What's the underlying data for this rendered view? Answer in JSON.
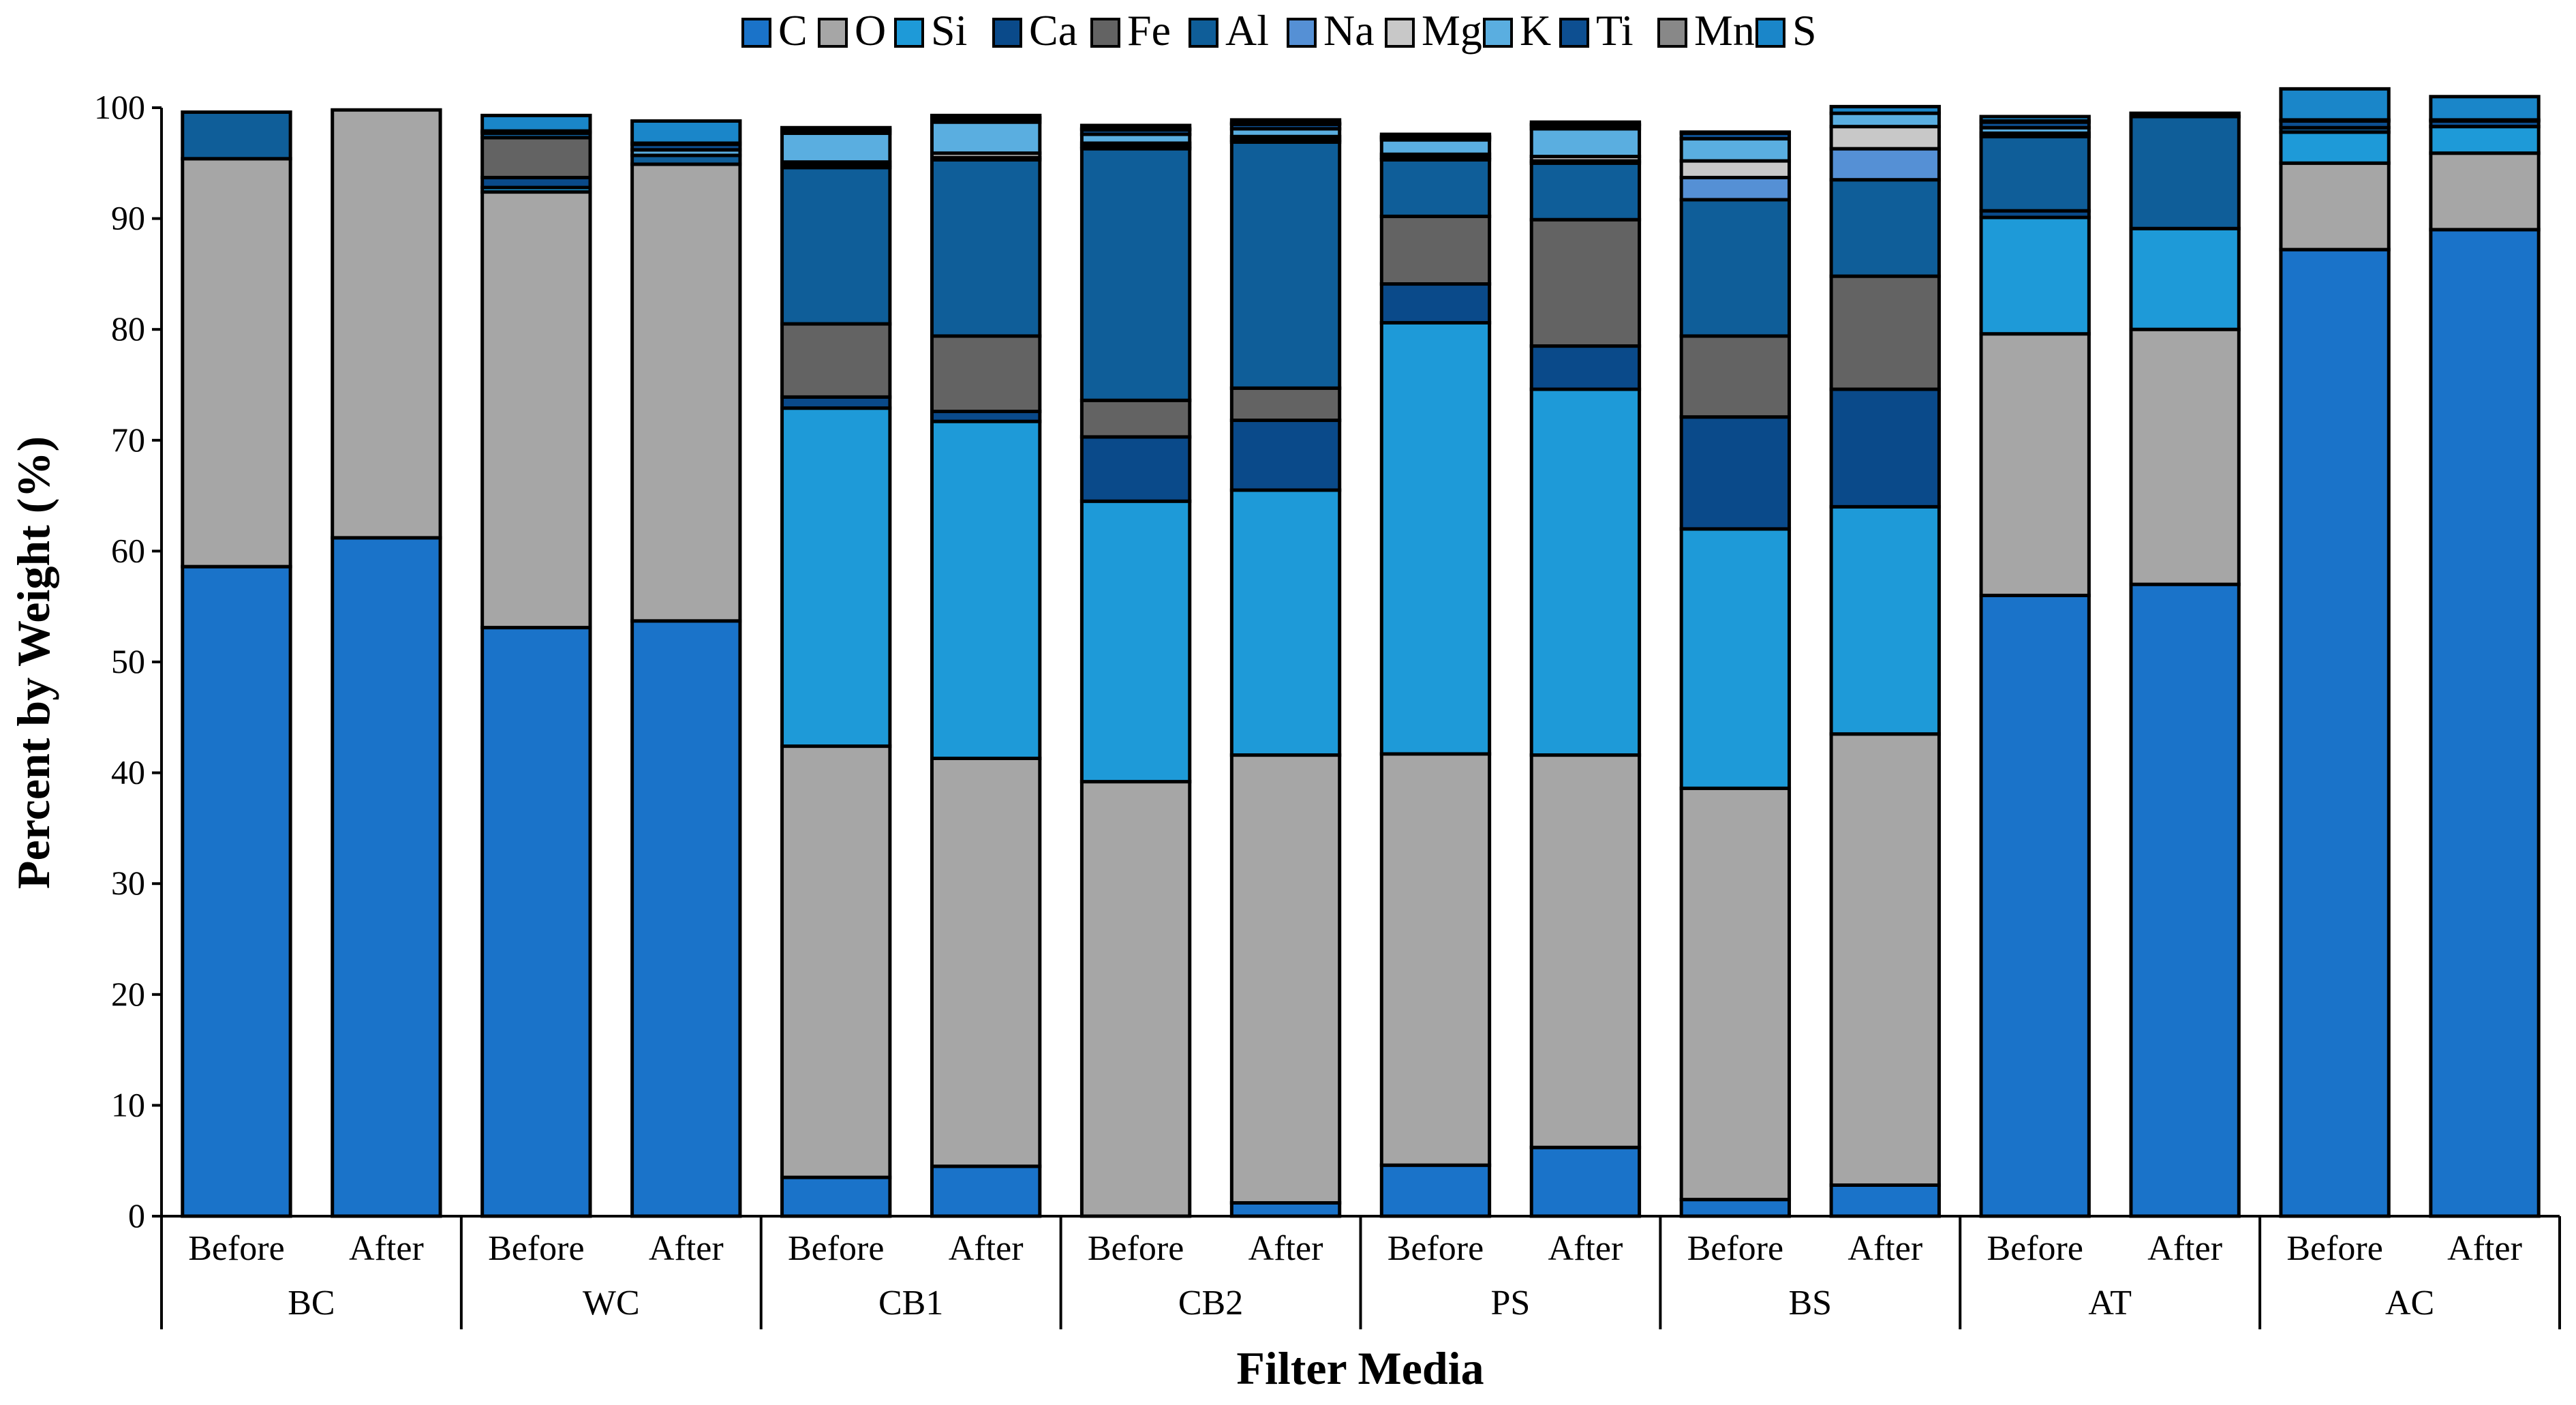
{
  "chart_data": {
    "type": "bar",
    "stacked": true,
    "title": "",
    "xlabel": "Filter Media",
    "ylabel": "Percent by Weight (%)",
    "ylim": [
      0,
      100
    ],
    "yticks": [
      0,
      10,
      20,
      30,
      40,
      50,
      60,
      70,
      80,
      90,
      100
    ],
    "legend_position": "top",
    "groups": [
      "BC",
      "WC",
      "CB1",
      "CB2",
      "PS",
      "BS",
      "AT",
      "AC"
    ],
    "subcategories": [
      "Before",
      "After"
    ],
    "categories": [
      "BC Before",
      "BC After",
      "WC Before",
      "WC After",
      "CB1 Before",
      "CB1 After",
      "CB2 Before",
      "CB2 After",
      "PS Before",
      "PS After",
      "BS Before",
      "BS After",
      "AT Before",
      "AT After",
      "AC Before",
      "AC After"
    ],
    "series": [
      {
        "name": "C",
        "color": "#1a73c9",
        "values": [
          58.6,
          61.2,
          53.1,
          53.7,
          3.5,
          4.5,
          0.0,
          1.2,
          4.6,
          6.2,
          1.5,
          2.8,
          56.0,
          57.0,
          87.2,
          89.0
        ]
      },
      {
        "name": "O",
        "color": "#a6a6a6",
        "values": [
          36.8,
          38.6,
          39.3,
          41.2,
          38.9,
          36.8,
          39.2,
          40.4,
          37.1,
          35.4,
          37.1,
          40.7,
          23.6,
          23.0,
          7.8,
          6.9
        ]
      },
      {
        "name": "Si",
        "color": "#1e9ad8",
        "values": [
          0.0,
          0.0,
          0.4,
          0.0,
          30.5,
          30.4,
          25.3,
          23.9,
          38.9,
          33.0,
          23.4,
          20.5,
          10.5,
          9.1,
          2.8,
          2.4
        ]
      },
      {
        "name": "Ca",
        "color": "#0a4a8a",
        "values": [
          0.0,
          0.0,
          0.9,
          0.0,
          1.0,
          0.9,
          5.8,
          6.3,
          3.5,
          3.9,
          10.1,
          10.6,
          0.6,
          0.0,
          0.0,
          0.0
        ]
      },
      {
        "name": "Fe",
        "color": "#636363",
        "values": [
          0.0,
          0.0,
          3.6,
          0.0,
          6.6,
          6.8,
          3.3,
          2.9,
          6.1,
          11.4,
          7.3,
          10.2,
          0.0,
          0.0,
          0.0,
          0.0
        ]
      },
      {
        "name": "Al",
        "color": "#0f5e99",
        "values": [
          4.2,
          0.0,
          0.4,
          0.8,
          14.1,
          15.9,
          22.7,
          22.2,
          5.1,
          5.1,
          12.3,
          8.7,
          6.7,
          10.1,
          0.4,
          0.0
        ]
      },
      {
        "name": "Na",
        "color": "#5590d5",
        "values": [
          0.0,
          0.0,
          0.0,
          0.0,
          0.2,
          0.2,
          0.2,
          0.2,
          0.2,
          0.2,
          2.0,
          2.8,
          0.0,
          0.0,
          0.0,
          0.0
        ]
      },
      {
        "name": "Mg",
        "color": "#c8c8c8",
        "values": [
          0.0,
          0.0,
          0.0,
          0.0,
          0.3,
          0.4,
          0.3,
          0.3,
          0.3,
          0.4,
          1.5,
          2.0,
          0.3,
          0.0,
          0.0,
          0.0
        ]
      },
      {
        "name": "K",
        "color": "#5aaee0",
        "values": [
          0.0,
          0.0,
          0.0,
          0.5,
          2.6,
          2.8,
          0.8,
          0.7,
          1.3,
          2.5,
          2.0,
          1.2,
          0.5,
          0.0,
          0.0,
          0.0
        ]
      },
      {
        "name": "Ti",
        "color": "#0d4f91",
        "values": [
          0.0,
          0.0,
          0.1,
          0.5,
          0.2,
          0.3,
          0.4,
          0.4,
          0.2,
          0.3,
          0.5,
          0.0,
          0.5,
          0.0,
          0.6,
          0.5
        ]
      },
      {
        "name": "Mn",
        "color": "#888888",
        "values": [
          0.0,
          0.0,
          0.1,
          0.1,
          0.1,
          0.1,
          0.1,
          0.1,
          0.1,
          0.1,
          0.0,
          0.0,
          0.1,
          0.0,
          0.1,
          0.1
        ]
      },
      {
        "name": "S",
        "color": "#1a86c9",
        "values": [
          0.0,
          0.0,
          1.4,
          2.0,
          0.2,
          0.2,
          0.3,
          0.3,
          0.2,
          0.2,
          0.1,
          0.6,
          0.4,
          0.3,
          2.8,
          2.1
        ]
      }
    ]
  }
}
